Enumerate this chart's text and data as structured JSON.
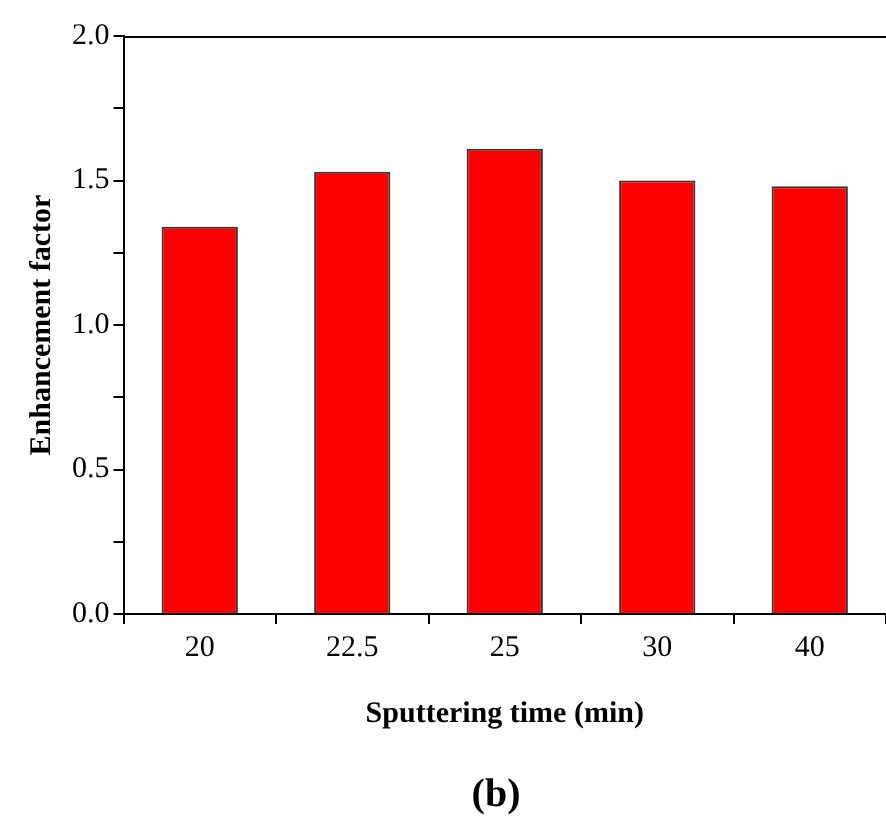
{
  "chart_data": {
    "type": "bar",
    "xlabel": "Sputtering time (min)",
    "ylabel": "Enhancement factor",
    "categories": [
      "20",
      "22.5",
      "25",
      "30",
      "40"
    ],
    "values": [
      1.34,
      1.53,
      1.61,
      1.5,
      1.48
    ],
    "color": "#ff0000",
    "ylim": [
      0,
      2.0
    ],
    "yticks": [
      {
        "value": 0,
        "label": "0.0"
      },
      {
        "value": 0.25,
        "label": null
      },
      {
        "value": 0.5,
        "label": "0.5"
      },
      {
        "value": 0.75,
        "label": null
      },
      {
        "value": 1,
        "label": "1.0"
      },
      {
        "value": 1.25,
        "label": null
      },
      {
        "value": 1.5,
        "label": "1.5"
      },
      {
        "value": 1.75,
        "label": null
      },
      {
        "value": 2,
        "label": "2.0"
      }
    ],
    "grid": false,
    "legend": false,
    "annotations": [
      "(b)"
    ]
  }
}
